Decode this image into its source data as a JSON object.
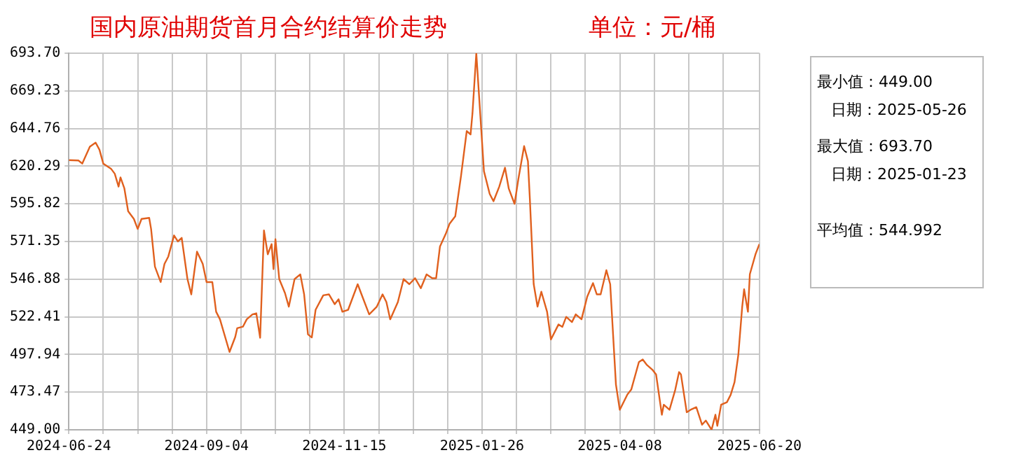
{
  "chart_data": {
    "type": "line",
    "title": "国内原油期货首月合约结算价走势",
    "subtitle": "单位：元/桶",
    "annotations": [
      "最小值：449.00",
      "日期：2025-05-26",
      "最大值：693.70",
      "日期：2025-01-23",
      "平均值：544.992"
    ],
    "x": [
      "2024-06-24",
      "2024-06-29",
      "2024-07-01",
      "2024-07-05",
      "2024-07-08",
      "2024-07-10",
      "2024-07-12",
      "2024-07-16",
      "2024-07-18",
      "2024-07-20",
      "2024-07-21",
      "2024-07-23",
      "2024-07-25",
      "2024-07-28",
      "2024-07-30",
      "2024-08-01",
      "2024-08-05",
      "2024-08-06",
      "2024-08-08",
      "2024-08-11",
      "2024-08-13",
      "2024-08-15",
      "2024-08-18",
      "2024-08-20",
      "2024-08-22",
      "2024-08-25",
      "2024-08-27",
      "2024-08-30",
      "2024-09-02",
      "2024-09-04",
      "2024-09-07",
      "2024-09-09",
      "2024-09-11",
      "2024-09-16",
      "2024-09-19",
      "2024-09-20",
      "2024-09-23",
      "2024-09-25",
      "2024-09-28",
      "2024-09-30",
      "2024-10-02",
      "2024-10-04",
      "2024-10-06",
      "2024-10-08",
      "2024-10-09",
      "2024-10-10",
      "2024-10-12",
      "2024-10-15",
      "2024-10-17",
      "2024-10-20",
      "2024-10-23",
      "2024-10-25",
      "2024-10-27",
      "2024-10-29",
      "2024-10-31",
      "2024-11-04",
      "2024-11-07",
      "2024-11-10",
      "2024-11-12",
      "2024-11-14",
      "2024-11-17",
      "2024-11-22",
      "2024-11-24",
      "2024-11-28",
      "2024-12-02",
      "2024-12-05",
      "2024-12-07",
      "2024-12-09",
      "2024-12-13",
      "2024-12-16",
      "2024-12-19",
      "2024-12-22",
      "2024-12-25",
      "2024-12-28",
      "2024-12-31",
      "2025-01-02",
      "2025-01-04",
      "2025-01-07",
      "2025-01-09",
      "2025-01-12",
      "2025-01-15",
      "2025-01-18",
      "2025-01-20",
      "2025-01-21",
      "2025-01-23",
      "2025-01-27",
      "2025-01-30",
      "2025-02-01",
      "2025-02-04",
      "2025-02-07",
      "2025-02-09",
      "2025-02-12",
      "2025-02-14",
      "2025-02-17",
      "2025-02-19",
      "2025-02-20",
      "2025-02-22",
      "2025-02-24",
      "2025-02-26",
      "2025-03-01",
      "2025-03-03",
      "2025-03-07",
      "2025-03-09",
      "2025-03-11",
      "2025-03-14",
      "2025-03-16",
      "2025-03-19",
      "2025-03-22",
      "2025-03-25",
      "2025-03-27",
      "2025-03-29",
      "2025-04-01",
      "2025-04-03",
      "2025-04-06",
      "2025-04-08",
      "2025-04-12",
      "2025-04-14",
      "2025-04-18",
      "2025-04-20",
      "2025-04-22",
      "2025-04-25",
      "2025-04-27",
      "2025-04-30",
      "2025-05-01",
      "2025-05-04",
      "2025-05-07",
      "2025-05-09",
      "2025-05-10",
      "2025-05-13",
      "2025-05-15",
      "2025-05-18",
      "2025-05-21",
      "2025-05-23",
      "2025-05-26",
      "2025-05-28",
      "2025-05-29",
      "2025-05-31",
      "2025-06-03",
      "2025-06-05",
      "2025-06-07",
      "2025-06-09",
      "2025-06-11",
      "2025-06-12",
      "2025-06-14",
      "2025-06-15",
      "2025-06-18",
      "2025-06-20"
    ],
    "series": [
      {
        "color": "#e0601e",
        "values": [
          624.2,
          624,
          622,
          633,
          635.6,
          631,
          622,
          618.7,
          615.4,
          607,
          613,
          606,
          591,
          586,
          579.5,
          586,
          586.7,
          579.5,
          555,
          545,
          556.8,
          561.6,
          575.3,
          571.4,
          573.7,
          547,
          537,
          564.8,
          556.8,
          545,
          545,
          525.7,
          520.8,
          499.6,
          509.4,
          515,
          516,
          520.8,
          524,
          524.7,
          508.8,
          578.5,
          563,
          569.7,
          553.4,
          572.9,
          546.9,
          537.8,
          529,
          546.9,
          550,
          537,
          511,
          509,
          527,
          536.4,
          537,
          530.6,
          533.8,
          525.7,
          527,
          543.6,
          537,
          524,
          529,
          537,
          532,
          520.8,
          532,
          546.9,
          543.6,
          547.5,
          541,
          550,
          547.5,
          547.5,
          568,
          576.2,
          582.8,
          587.7,
          613.8,
          643.1,
          640.9,
          654.6,
          693.7,
          617,
          602.3,
          597.5,
          607,
          619.3,
          605.6,
          595.8,
          612,
          633.3,
          623.5,
          599,
          543.7,
          529,
          538.7,
          525.7,
          507.7,
          517.5,
          515.9,
          522.4,
          519,
          524,
          520.8,
          535.5,
          544.3,
          537,
          537,
          552.7,
          543.6,
          478.4,
          462,
          472,
          475.1,
          493,
          494.7,
          491.4,
          488.1,
          484.9,
          458.8,
          465.3,
          462,
          475,
          486.5,
          484.9,
          460.4,
          462,
          463.7,
          452.3,
          455,
          449,
          458.8,
          451.6,
          465.3,
          466.9,
          471.8,
          480,
          497.9,
          528.9,
          540.3,
          525.7,
          550.1,
          563.2,
          569.7
        ]
      }
    ],
    "xlim": [
      "2024-06-24",
      "2025-06-20"
    ],
    "xticks": [
      {
        "value": "2024-06-24",
        "label": "2024-06-24"
      },
      {
        "value": "2024-07-12",
        "label": null
      },
      {
        "value": "2024-07-30",
        "label": null
      },
      {
        "value": "2024-08-17",
        "label": null
      },
      {
        "value": "2024-09-04",
        "label": "2024-09-04"
      },
      {
        "value": "2024-09-22",
        "label": null
      },
      {
        "value": "2024-10-10",
        "label": null
      },
      {
        "value": "2024-10-28",
        "label": null
      },
      {
        "value": "2024-11-15",
        "label": "2024-11-15"
      },
      {
        "value": "2024-12-03",
        "label": null
      },
      {
        "value": "2024-12-21",
        "label": null
      },
      {
        "value": "2025-01-08",
        "label": null
      },
      {
        "value": "2025-01-26",
        "label": "2025-01-26"
      },
      {
        "value": "2025-02-13",
        "label": null
      },
      {
        "value": "2025-03-03",
        "label": null
      },
      {
        "value": "2025-03-21",
        "label": null
      },
      {
        "value": "2025-04-08",
        "label": "2025-04-08"
      },
      {
        "value": "2025-04-26",
        "label": null
      },
      {
        "value": "2025-05-14",
        "label": null
      },
      {
        "value": "2025-06-01",
        "label": null
      },
      {
        "value": "2025-06-20",
        "label": "2025-06-20"
      }
    ],
    "ylim": [
      449,
      693.7
    ],
    "yticks": [
      {
        "value": 449,
        "label": "449.00"
      },
      {
        "value": 473.47,
        "label": "473.47"
      },
      {
        "value": 497.94,
        "label": "497.94"
      },
      {
        "value": 522.41,
        "label": "522.41"
      },
      {
        "value": 546.88,
        "label": "546.88"
      },
      {
        "value": 571.35,
        "label": "571.35"
      },
      {
        "value": 595.82,
        "label": "595.82"
      },
      {
        "value": 620.29,
        "label": "620.29"
      },
      {
        "value": 644.76,
        "label": "644.76"
      },
      {
        "value": 669.23,
        "label": "669.23"
      },
      {
        "value": 693.7,
        "label": "693.70"
      }
    ],
    "grid": true,
    "legend": false,
    "marker": "none",
    "line_style": "solid"
  }
}
